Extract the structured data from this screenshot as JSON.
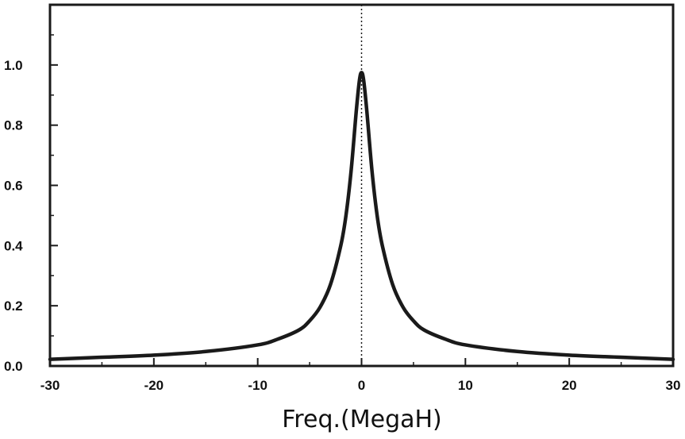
{
  "chart_data": {
    "type": "line",
    "title": "",
    "xlabel": "Freq.(MegaH)",
    "ylabel": "",
    "xlim": [
      -30,
      30
    ],
    "ylim": [
      0,
      1.2
    ],
    "x_ticks": [
      -30,
      -20,
      -10,
      0,
      10,
      20,
      30
    ],
    "x_tick_labels": [
      "-30",
      "-20",
      "-10",
      "0",
      "10",
      "20",
      "30"
    ],
    "y_ticks": [
      0,
      0.2,
      0.4,
      0.6,
      0.8,
      1.0
    ],
    "y_tick_labels": [
      "0.0",
      "0.2",
      "0.4",
      "0.6",
      "0.8",
      "1.0"
    ],
    "grid": false,
    "reference_line": {
      "x": 0,
      "style": "dotted"
    },
    "series": [
      {
        "x": [
          -30,
          -25,
          -20,
          -15,
          -10,
          -8,
          -6,
          -5,
          -4,
          -3,
          -2,
          -1.5,
          -1,
          -0.5,
          -0.2,
          0,
          0.2,
          0.5,
          1,
          1.5,
          2,
          3,
          4,
          5,
          6,
          8,
          10,
          15,
          20,
          25,
          30
        ],
        "y": [
          0.022,
          0.029,
          0.036,
          0.048,
          0.07,
          0.09,
          0.12,
          0.15,
          0.195,
          0.27,
          0.4,
          0.5,
          0.65,
          0.85,
          0.95,
          0.975,
          0.95,
          0.85,
          0.65,
          0.5,
          0.4,
          0.27,
          0.195,
          0.15,
          0.12,
          0.09,
          0.07,
          0.048,
          0.036,
          0.029,
          0.022
        ],
        "color": "#1a1a1a"
      }
    ]
  }
}
